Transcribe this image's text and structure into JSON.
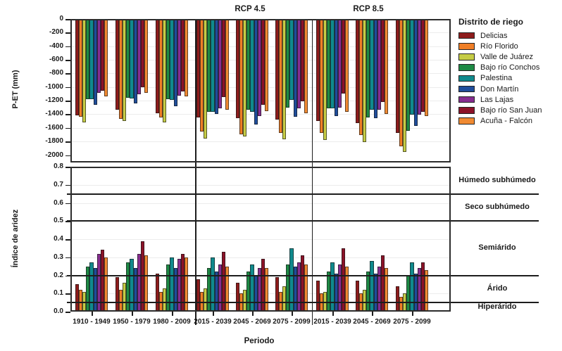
{
  "figure": {
    "x_axis_label": "Periodo",
    "y_axis_top_label": "P-ET (mm)",
    "y_axis_bottom_label": "Índice de aridez",
    "section_labels": [
      "RCP 4.5",
      "RCP 8.5"
    ]
  },
  "legend": {
    "title": "Distrito de riego",
    "items": [
      {
        "label": "Delicias",
        "color": "#8e1c1c"
      },
      {
        "label": "Río Florido",
        "color": "#ef7e26"
      },
      {
        "label": "Valle de Juárez",
        "color": "#c5cc45"
      },
      {
        "label": "Bajo río Conchos",
        "color": "#1e8a45"
      },
      {
        "label": "Palestina",
        "color": "#0f8a8d"
      },
      {
        "label": "Don Martín",
        "color": "#1f4d9b"
      },
      {
        "label": "Las Lajas",
        "color": "#862d90"
      },
      {
        "label": "Bajo río San Juan",
        "color": "#8c1228"
      },
      {
        "label": "Acuña - Falcón",
        "color": "#f08a32"
      }
    ]
  },
  "chart_data": [
    {
      "type": "bar",
      "title": "P-ET by period and irrigation district",
      "ylabel": "P-ET (mm)",
      "ylim": [
        -2000,
        0
      ],
      "ytick_values": [
        0,
        -200,
        -400,
        -600,
        -800,
        -1000,
        -1200,
        -1400,
        -1600,
        -1800,
        -2000
      ],
      "ytick_labels": [
        "0",
        "-200",
        "-400",
        "-600",
        "-800",
        "-1000",
        "-1200",
        "-1400",
        "-1600",
        "-1800",
        "-2000"
      ],
      "categories": [
        "1910 - 1949",
        "1950 - 1979",
        "1980 - 2009",
        "2015 - 2039",
        "2045 - 2069",
        "2075 - 2099",
        "2015 - 2039",
        "2045 - 2069",
        "2075 - 2099"
      ],
      "sections": {
        "historical": [
          0,
          1,
          2
        ],
        "rcp45": [
          3,
          4,
          5
        ],
        "rcp85": [
          6,
          7,
          8
        ]
      },
      "grid": "light horizontal every 200",
      "legend_position": "right",
      "series": [
        {
          "name": "Delicias",
          "color": "#8e1c1c",
          "values": [
            -1420,
            -1330,
            -1380,
            -1450,
            -1460,
            -1480,
            -1500,
            -1530,
            -1670
          ]
        },
        {
          "name": "Río Florido",
          "color": "#ef7e26",
          "values": [
            -1440,
            -1470,
            -1450,
            -1650,
            -1700,
            -1670,
            -1670,
            -1710,
            -1870
          ]
        },
        {
          "name": "Valle de Juárez",
          "color": "#c5cc45",
          "values": [
            -1520,
            -1500,
            -1520,
            -1760,
            -1730,
            -1770,
            -1780,
            -1810,
            -1950
          ]
        },
        {
          "name": "Bajo río Conchos",
          "color": "#1e8a45",
          "values": [
            -1180,
            -1160,
            -1180,
            -1360,
            -1330,
            -1300,
            -1310,
            -1450,
            -1640
          ]
        },
        {
          "name": "Palestina",
          "color": "#0f8a8d",
          "values": [
            -1180,
            -1170,
            -1190,
            -1360,
            -1360,
            -1190,
            -1310,
            -1330,
            -1410
          ]
        },
        {
          "name": "Don Martín",
          "color": "#1f4d9b",
          "values": [
            -1260,
            -1240,
            -1280,
            -1400,
            -1550,
            -1440,
            -1430,
            -1460,
            -1570
          ]
        },
        {
          "name": "Las Lajas",
          "color": "#862d90",
          "values": [
            -1090,
            -1110,
            -1130,
            -1310,
            -1430,
            -1310,
            -1300,
            -1330,
            -1410
          ]
        },
        {
          "name": "Bajo río San Juan",
          "color": "#8c1228",
          "values": [
            -1050,
            -1000,
            -1060,
            -1150,
            -1260,
            -1210,
            -1100,
            -1220,
            -1360
          ]
        },
        {
          "name": "Acuña - Falcón",
          "color": "#f08a32",
          "values": [
            -1140,
            -1090,
            -1140,
            -1330,
            -1350,
            -1390,
            -1360,
            -1400,
            -1430
          ]
        }
      ]
    },
    {
      "type": "bar",
      "title": "Aridity index by period and irrigation district",
      "ylabel": "Índice de aridez",
      "ylim": [
        0,
        0.8
      ],
      "ytick_values": [
        0.8,
        0.7,
        0.6,
        0.5,
        0.4,
        0.3,
        0.2,
        0.1,
        0.0
      ],
      "ytick_labels": [
        "0.8",
        "0.7",
        "0.6",
        "0.5",
        "0.4",
        "0.3",
        "0.2",
        "0.1",
        "0.0"
      ],
      "categories": [
        "1910 - 1949",
        "1950 - 1979",
        "1980 - 2009",
        "2015 - 2039",
        "2045 - 2069",
        "2075 - 2099",
        "2015 - 2039",
        "2045 - 2069",
        "2075 - 2099"
      ],
      "threshold_lines": [
        0.65,
        0.5,
        0.2,
        0.05
      ],
      "zones": [
        {
          "label": "Húmedo subhúmedo",
          "from": 0.65,
          "to": 0.8
        },
        {
          "label": "Seco subhúmedo",
          "from": 0.5,
          "to": 0.65
        },
        {
          "label": "Semiárido",
          "from": 0.2,
          "to": 0.5
        },
        {
          "label": "Árido",
          "from": 0.05,
          "to": 0.2
        },
        {
          "label": "Hiperárido",
          "from": 0.0,
          "to": 0.05
        }
      ],
      "series": [
        {
          "name": "Delicias",
          "color": "#8e1c1c",
          "values": [
            0.15,
            0.19,
            0.21,
            0.18,
            0.16,
            0.19,
            0.17,
            0.17,
            0.14
          ]
        },
        {
          "name": "Río Florido",
          "color": "#ef7e26",
          "values": [
            0.12,
            0.12,
            0.11,
            0.11,
            0.1,
            0.11,
            0.1,
            0.1,
            0.08
          ]
        },
        {
          "name": "Valle de Juárez",
          "color": "#c5cc45",
          "values": [
            0.11,
            0.16,
            0.13,
            0.13,
            0.12,
            0.14,
            0.11,
            0.12,
            0.1
          ]
        },
        {
          "name": "Bajo río Conchos",
          "color": "#1e8a45",
          "values": [
            0.25,
            0.27,
            0.26,
            0.24,
            0.22,
            0.26,
            0.22,
            0.22,
            0.2
          ]
        },
        {
          "name": "Palestina",
          "color": "#0f8a8d",
          "values": [
            0.27,
            0.29,
            0.3,
            0.3,
            0.26,
            0.35,
            0.27,
            0.28,
            0.27
          ]
        },
        {
          "name": "Don Martín",
          "color": "#1f4d9b",
          "values": [
            0.24,
            0.24,
            0.24,
            0.22,
            0.2,
            0.25,
            0.21,
            0.21,
            0.21
          ]
        },
        {
          "name": "Las Lajas",
          "color": "#862d90",
          "values": [
            0.32,
            0.32,
            0.29,
            0.26,
            0.24,
            0.27,
            0.26,
            0.25,
            0.24
          ]
        },
        {
          "name": "Bajo río San Juan",
          "color": "#8c1228",
          "values": [
            0.34,
            0.39,
            0.32,
            0.33,
            0.29,
            0.31,
            0.35,
            0.31,
            0.27
          ]
        },
        {
          "name": "Acuña - Falcón",
          "color": "#f08a32",
          "values": [
            0.3,
            0.31,
            0.3,
            0.25,
            0.24,
            0.26,
            0.25,
            0.24,
            0.23
          ]
        }
      ]
    }
  ]
}
